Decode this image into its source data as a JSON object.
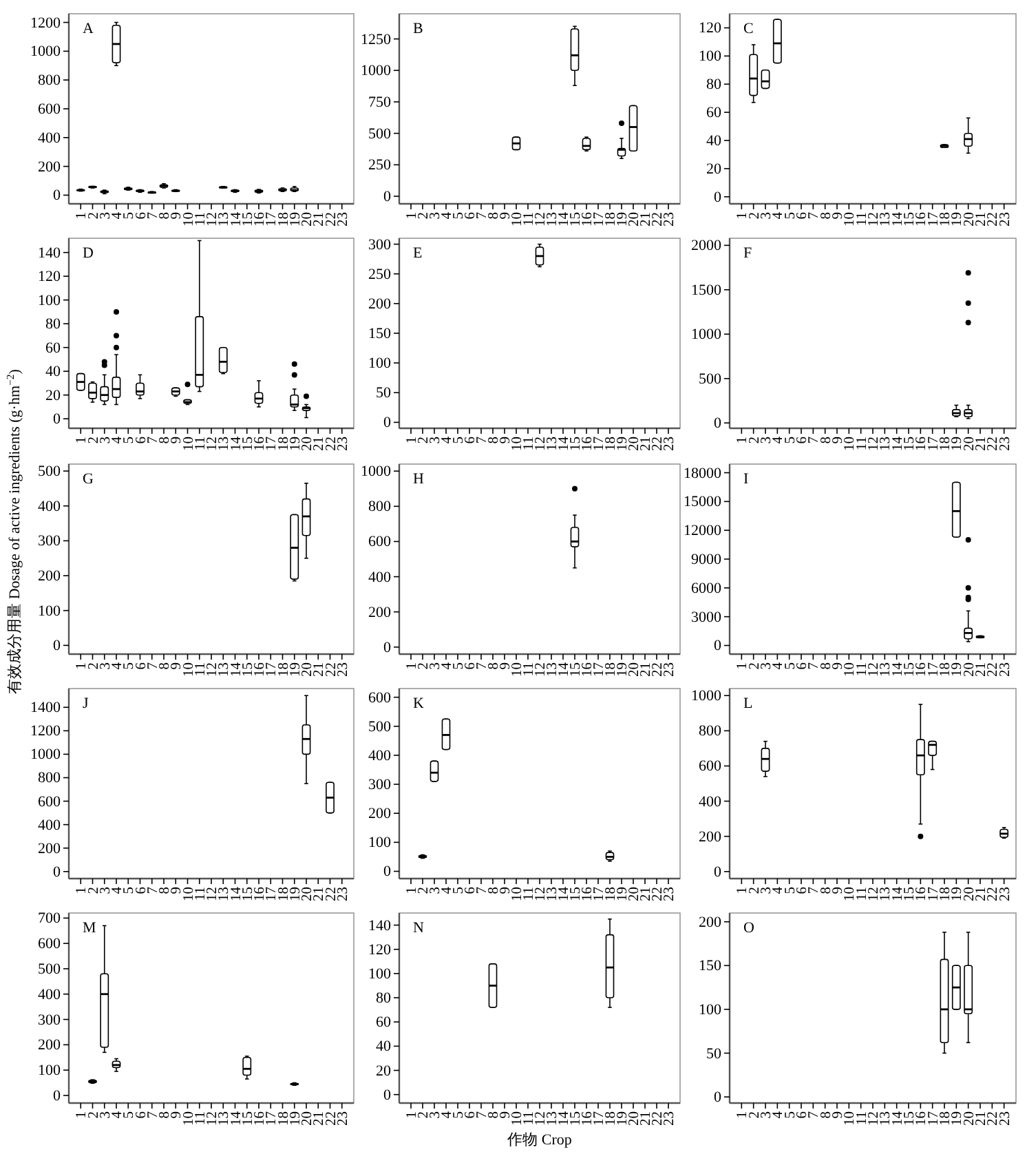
{
  "chart_data": [
    {
      "type": "box",
      "title": "A",
      "categories": [
        "1",
        "2",
        "3",
        "4",
        "5",
        "6",
        "7",
        "8",
        "9",
        "10",
        "11",
        "12",
        "13",
        "14",
        "15",
        "16",
        "17",
        "18",
        "19",
        "20",
        "21",
        "22",
        "23"
      ],
      "ylim": [
        -60,
        1260
      ],
      "yticks": [
        0,
        200,
        400,
        600,
        800,
        1000,
        1200
      ],
      "boxes": [
        {
          "low": 28,
          "q1": 32,
          "median": 35,
          "q3": 38,
          "high": 42
        },
        {
          "low": 50,
          "q1": 55,
          "median": 58,
          "q3": 60,
          "high": 62
        },
        {
          "low": 10,
          "q1": 18,
          "median": 25,
          "q3": 30,
          "high": 35
        },
        {
          "low": 900,
          "q1": 920,
          "median": 1050,
          "q3": 1180,
          "high": 1200
        },
        {
          "low": 35,
          "q1": 38,
          "median": 45,
          "q3": 50,
          "high": 55
        },
        {
          "low": 20,
          "q1": 25,
          "median": 30,
          "q3": 35,
          "high": 38
        },
        {
          "low": 15,
          "q1": 18,
          "median": 20,
          "q3": 22,
          "high": 25
        },
        {
          "low": 50,
          "q1": 55,
          "median": 65,
          "q3": 72,
          "high": 80
        },
        {
          "low": 25,
          "q1": 28,
          "median": 30,
          "q3": 35,
          "high": 38
        },
        null,
        null,
        null,
        {
          "low": 50,
          "q1": 53,
          "median": 55,
          "q3": 58,
          "high": 60
        },
        {
          "low": 20,
          "q1": 25,
          "median": 30,
          "q3": 35,
          "high": 38
        },
        null,
        {
          "low": 15,
          "q1": 20,
          "median": 28,
          "q3": 35,
          "high": 40
        },
        null,
        {
          "low": 25,
          "q1": 30,
          "median": 35,
          "q3": 45,
          "high": 50
        },
        {
          "low": 25,
          "q1": 30,
          "median": 35,
          "q3": 50,
          "high": 60
        },
        null,
        null,
        null,
        null
      ]
    },
    {
      "type": "box",
      "title": "B",
      "categories": [
        "1",
        "2",
        "3",
        "4",
        "5",
        "6",
        "7",
        "8",
        "9",
        "10",
        "11",
        "12",
        "13",
        "14",
        "15",
        "16",
        "17",
        "18",
        "19",
        "20",
        "21",
        "22",
        "23"
      ],
      "ylim": [
        -60,
        1450
      ],
      "yticks": [
        0,
        250,
        500,
        750,
        1000,
        1250
      ],
      "boxes": [
        null,
        null,
        null,
        null,
        null,
        null,
        null,
        null,
        null,
        {
          "low": 370,
          "q1": 370,
          "median": 420,
          "q3": 470,
          "high": 470
        },
        null,
        null,
        null,
        null,
        {
          "low": 880,
          "q1": 1000,
          "median": 1120,
          "q3": 1330,
          "high": 1350
        },
        {
          "low": 360,
          "q1": 370,
          "median": 400,
          "q3": 460,
          "high": 470
        },
        null,
        null,
        {
          "low": 300,
          "q1": 320,
          "median": 370,
          "q3": 380,
          "high": 460,
          "outliers": [
            580
          ]
        },
        {
          "low": 360,
          "q1": 360,
          "median": 550,
          "q3": 720,
          "high": 720
        },
        null,
        null,
        null
      ]
    },
    {
      "type": "box",
      "title": "C",
      "categories": [
        "1",
        "2",
        "3",
        "4",
        "5",
        "6",
        "7",
        "8",
        "9",
        "10",
        "11",
        "12",
        "13",
        "14",
        "15",
        "16",
        "17",
        "18",
        "19",
        "20",
        "21",
        "22",
        "23"
      ],
      "ylim": [
        -5,
        130
      ],
      "yticks": [
        0,
        20,
        40,
        60,
        80,
        100,
        120
      ],
      "boxes": [
        null,
        {
          "low": 67,
          "q1": 72,
          "median": 84,
          "q3": 101,
          "high": 108
        },
        {
          "low": 77,
          "q1": 77,
          "median": 82,
          "q3": 90,
          "high": 90
        },
        {
          "low": 95,
          "q1": 95,
          "median": 109,
          "q3": 126,
          "high": 126
        },
        null,
        null,
        null,
        null,
        null,
        null,
        null,
        null,
        null,
        null,
        null,
        null,
        null,
        {
          "low": 35,
          "q1": 35,
          "median": 36,
          "q3": 37,
          "high": 37
        },
        null,
        {
          "low": 31,
          "q1": 36,
          "median": 41,
          "q3": 45,
          "high": 56
        },
        null,
        null,
        null
      ]
    },
    {
      "type": "box",
      "title": "D",
      "categories": [
        "1",
        "2",
        "3",
        "4",
        "5",
        "6",
        "7",
        "8",
        "9",
        "10",
        "11",
        "12",
        "13",
        "14",
        "15",
        "16",
        "17",
        "18",
        "19",
        "20",
        "21",
        "22",
        "23"
      ],
      "ylim": [
        -8,
        152
      ],
      "yticks": [
        0,
        20,
        40,
        60,
        80,
        100,
        120,
        140
      ],
      "boxes": [
        {
          "low": 24,
          "q1": 24,
          "median": 31,
          "q3": 38,
          "high": 38
        },
        {
          "low": 14,
          "q1": 17,
          "median": 22,
          "q3": 30,
          "high": 31
        },
        {
          "low": 12,
          "q1": 15,
          "median": 20,
          "q3": 27,
          "high": 37,
          "outliers": [
            45,
            48
          ]
        },
        {
          "low": 12,
          "q1": 18,
          "median": 25,
          "q3": 35,
          "high": 54,
          "outliers": [
            60,
            70,
            90
          ]
        },
        null,
        {
          "low": 17,
          "q1": 20,
          "median": 23,
          "q3": 30,
          "high": 37
        },
        null,
        null,
        {
          "low": 19,
          "q1": 20,
          "median": 23,
          "q3": 26,
          "high": 26
        },
        {
          "low": 12,
          "q1": 13,
          "median": 14,
          "q3": 16,
          "high": 16,
          "outliers": [
            29
          ]
        },
        {
          "low": 23,
          "q1": 27,
          "median": 37,
          "q3": 86,
          "high": 150
        },
        null,
        {
          "low": 38,
          "q1": 39,
          "median": 48,
          "q3": 60,
          "high": 60
        },
        null,
        null,
        {
          "low": 10,
          "q1": 13,
          "median": 17,
          "q3": 22,
          "high": 32
        },
        null,
        null,
        {
          "low": 7,
          "q1": 10,
          "median": 12,
          "q3": 20,
          "high": 25,
          "outliers": [
            37,
            46
          ]
        },
        {
          "low": 1,
          "q1": 7,
          "median": 9,
          "q3": 10,
          "high": 12,
          "outliers": [
            19
          ]
        },
        null,
        null,
        null
      ]
    },
    {
      "type": "box",
      "title": "E",
      "categories": [
        "1",
        "2",
        "3",
        "4",
        "5",
        "6",
        "7",
        "8",
        "9",
        "10",
        "11",
        "12",
        "13",
        "14",
        "15",
        "16",
        "17",
        "18",
        "19",
        "20",
        "21",
        "22",
        "23"
      ],
      "ylim": [
        -10,
        310
      ],
      "yticks": [
        0,
        50,
        100,
        150,
        200,
        250,
        300
      ],
      "boxes": [
        null,
        null,
        null,
        null,
        null,
        null,
        null,
        null,
        null,
        null,
        null,
        {
          "low": 262,
          "q1": 265,
          "median": 280,
          "q3": 295,
          "high": 300
        },
        null,
        null,
        null,
        null,
        null,
        null,
        null,
        null,
        null,
        null,
        null
      ]
    },
    {
      "type": "box",
      "title": "F",
      "categories": [
        "1",
        "2",
        "3",
        "4",
        "5",
        "6",
        "7",
        "8",
        "9",
        "10",
        "11",
        "12",
        "13",
        "14",
        "15",
        "16",
        "17",
        "18",
        "19",
        "20",
        "21",
        "22",
        "23"
      ],
      "ylim": [
        -60,
        2080
      ],
      "yticks": [
        0,
        500,
        1000,
        1500,
        2000
      ],
      "boxes": [
        null,
        null,
        null,
        null,
        null,
        null,
        null,
        null,
        null,
        null,
        null,
        null,
        null,
        null,
        null,
        null,
        null,
        null,
        {
          "low": 70,
          "q1": 80,
          "median": 110,
          "q3": 150,
          "high": 200
        },
        {
          "low": 50,
          "q1": 70,
          "median": 110,
          "q3": 150,
          "high": 200,
          "outliers": [
            1130,
            1350,
            1690
          ]
        },
        null,
        null,
        null
      ]
    },
    {
      "type": "box",
      "title": "G",
      "categories": [
        "1",
        "2",
        "3",
        "4",
        "5",
        "6",
        "7",
        "8",
        "9",
        "10",
        "11",
        "12",
        "13",
        "14",
        "15",
        "16",
        "17",
        "18",
        "19",
        "20",
        "21",
        "22",
        "23"
      ],
      "ylim": [
        -25,
        520
      ],
      "yticks": [
        0,
        100,
        200,
        300,
        400,
        500
      ],
      "ylabel": "有效成分用量 Dosage of active ingredients (g·hm$^{−2}$)",
      "boxes": [
        null,
        null,
        null,
        null,
        null,
        null,
        null,
        null,
        null,
        null,
        null,
        null,
        null,
        null,
        null,
        null,
        null,
        null,
        {
          "low": 185,
          "q1": 190,
          "median": 280,
          "q3": 375,
          "high": 375
        },
        {
          "low": 250,
          "q1": 315,
          "median": 370,
          "q3": 420,
          "high": 465
        },
        null,
        null,
        null
      ]
    },
    {
      "type": "box",
      "title": "H",
      "categories": [
        "1",
        "2",
        "3",
        "4",
        "5",
        "6",
        "7",
        "8",
        "9",
        "10",
        "11",
        "12",
        "13",
        "14",
        "15",
        "16",
        "17",
        "18",
        "19",
        "20",
        "21",
        "22",
        "23"
      ],
      "ylim": [
        -40,
        1040
      ],
      "yticks": [
        0,
        200,
        400,
        600,
        800,
        1000
      ],
      "boxes": [
        null,
        null,
        null,
        null,
        null,
        null,
        null,
        null,
        null,
        null,
        null,
        null,
        null,
        null,
        {
          "low": 450,
          "q1": 570,
          "median": 600,
          "q3": 680,
          "high": 750,
          "outliers": [
            900
          ]
        },
        null,
        null,
        null,
        null,
        null,
        null,
        null,
        null
      ]
    },
    {
      "type": "box",
      "title": "I",
      "categories": [
        "1",
        "2",
        "3",
        "4",
        "5",
        "6",
        "7",
        "8",
        "9",
        "10",
        "11",
        "12",
        "13",
        "14",
        "15",
        "16",
        "17",
        "18",
        "19",
        "20",
        "21",
        "22",
        "23"
      ],
      "ylim": [
        -900,
        18900
      ],
      "yticks": [
        0,
        3000,
        6000,
        9000,
        12000,
        15000,
        18000
      ],
      "boxes": [
        null,
        null,
        null,
        null,
        null,
        null,
        null,
        null,
        null,
        null,
        null,
        null,
        null,
        null,
        null,
        null,
        null,
        null,
        {
          "low": 11300,
          "q1": 11300,
          "median": 14000,
          "q3": 17000,
          "high": 17000
        },
        {
          "low": 400,
          "q1": 700,
          "median": 1300,
          "q3": 1800,
          "high": 3600,
          "outliers": [
            4800,
            5000,
            6000,
            11000
          ]
        },
        {
          "low": 800,
          "q1": 800,
          "median": 900,
          "q3": 1000,
          "high": 1000
        },
        null,
        null
      ]
    },
    {
      "type": "box",
      "title": "J",
      "categories": [
        "1",
        "2",
        "3",
        "4",
        "5",
        "6",
        "7",
        "8",
        "9",
        "10",
        "11",
        "12",
        "13",
        "14",
        "15",
        "16",
        "17",
        "18",
        "19",
        "20",
        "21",
        "22",
        "23"
      ],
      "ylim": [
        -60,
        1560
      ],
      "yticks": [
        0,
        200,
        400,
        600,
        800,
        1000,
        1200,
        1400
      ],
      "boxes": [
        null,
        null,
        null,
        null,
        null,
        null,
        null,
        null,
        null,
        null,
        null,
        null,
        null,
        null,
        null,
        null,
        null,
        null,
        null,
        {
          "low": 750,
          "q1": 1000,
          "median": 1130,
          "q3": 1250,
          "high": 1500
        },
        null,
        {
          "low": 500,
          "q1": 500,
          "median": 630,
          "q3": 760,
          "high": 760
        },
        null
      ]
    },
    {
      "type": "box",
      "title": "K",
      "categories": [
        "1",
        "2",
        "3",
        "4",
        "5",
        "6",
        "7",
        "8",
        "9",
        "10",
        "11",
        "12",
        "13",
        "14",
        "15",
        "16",
        "17",
        "18",
        "19",
        "20",
        "21",
        "22",
        "23"
      ],
      "ylim": [
        -25,
        630
      ],
      "yticks": [
        0,
        100,
        200,
        300,
        400,
        500,
        600
      ],
      "boxes": [
        null,
        {
          "low": 45,
          "q1": 47,
          "median": 50,
          "q3": 55,
          "high": 57
        },
        {
          "low": 310,
          "q1": 310,
          "median": 340,
          "q3": 380,
          "high": 380
        },
        {
          "low": 420,
          "q1": 420,
          "median": 470,
          "q3": 525,
          "high": 525
        },
        null,
        null,
        null,
        null,
        null,
        null,
        null,
        null,
        null,
        null,
        null,
        null,
        null,
        {
          "low": 35,
          "q1": 40,
          "median": 50,
          "q3": 65,
          "high": 70
        },
        null,
        null,
        null,
        null,
        null
      ]
    },
    {
      "type": "box",
      "title": "L",
      "categories": [
        "1",
        "2",
        "3",
        "4",
        "5",
        "6",
        "7",
        "8",
        "9",
        "10",
        "11",
        "12",
        "13",
        "14",
        "15",
        "16",
        "17",
        "18",
        "19",
        "20",
        "21",
        "22",
        "23"
      ],
      "ylim": [
        -40,
        1040
      ],
      "yticks": [
        0,
        200,
        400,
        600,
        800,
        1000
      ],
      "boxes": [
        null,
        null,
        {
          "low": 540,
          "q1": 570,
          "median": 640,
          "q3": 700,
          "high": 740
        },
        null,
        null,
        null,
        null,
        null,
        null,
        null,
        null,
        null,
        null,
        null,
        null,
        {
          "low": 270,
          "q1": 550,
          "median": 660,
          "q3": 750,
          "high": 950,
          "outliers": [
            200
          ]
        },
        {
          "low": 580,
          "q1": 660,
          "median": 720,
          "q3": 740,
          "high": 740
        },
        null,
        null,
        null,
        null,
        null,
        {
          "low": 190,
          "q1": 195,
          "median": 215,
          "q3": 240,
          "high": 250
        }
      ]
    },
    {
      "type": "box",
      "title": "M",
      "categories": [
        "1",
        "2",
        "3",
        "4",
        "5",
        "6",
        "7",
        "8",
        "9",
        "10",
        "11",
        "12",
        "13",
        "14",
        "15",
        "16",
        "17",
        "18",
        "19",
        "20",
        "21",
        "22",
        "23"
      ],
      "ylim": [
        -30,
        720
      ],
      "yticks": [
        0,
        100,
        200,
        300,
        400,
        500,
        600,
        700
      ],
      "boxes": [
        null,
        {
          "low": 48,
          "q1": 50,
          "median": 55,
          "q3": 60,
          "high": 62
        },
        {
          "low": 170,
          "q1": 190,
          "median": 400,
          "q3": 480,
          "high": 670
        },
        {
          "low": 95,
          "q1": 110,
          "median": 120,
          "q3": 135,
          "high": 145
        },
        null,
        null,
        null,
        null,
        null,
        null,
        null,
        null,
        null,
        null,
        {
          "low": 65,
          "q1": 80,
          "median": 105,
          "q3": 150,
          "high": 155
        },
        null,
        null,
        null,
        {
          "low": 40,
          "q1": 42,
          "median": 45,
          "q3": 48,
          "high": 50
        },
        null,
        null,
        null,
        null
      ]
    },
    {
      "type": "box",
      "title": "N",
      "categories": [
        "1",
        "2",
        "3",
        "4",
        "5",
        "6",
        "7",
        "8",
        "9",
        "10",
        "11",
        "12",
        "13",
        "14",
        "15",
        "16",
        "17",
        "18",
        "19",
        "20",
        "21",
        "22",
        "23"
      ],
      "ylim": [
        -7,
        150
      ],
      "yticks": [
        0,
        20,
        40,
        60,
        80,
        100,
        120,
        140
      ],
      "xlabel": "作物 Crop",
      "boxes": [
        null,
        null,
        null,
        null,
        null,
        null,
        null,
        {
          "low": 72,
          "q1": 72,
          "median": 90,
          "q3": 108,
          "high": 108
        },
        null,
        null,
        null,
        null,
        null,
        null,
        null,
        null,
        null,
        {
          "low": 72,
          "q1": 80,
          "median": 105,
          "q3": 132,
          "high": 145
        },
        null,
        null,
        null,
        null,
        null
      ]
    },
    {
      "type": "box",
      "title": "O",
      "categories": [
        "1",
        "2",
        "3",
        "4",
        "5",
        "6",
        "7",
        "8",
        "9",
        "10",
        "11",
        "12",
        "13",
        "14",
        "15",
        "16",
        "17",
        "18",
        "19",
        "20",
        "21",
        "22",
        "23"
      ],
      "ylim": [
        -7,
        210
      ],
      "yticks": [
        0,
        50,
        100,
        150,
        200
      ],
      "boxes": [
        null,
        null,
        null,
        null,
        null,
        null,
        null,
        null,
        null,
        null,
        null,
        null,
        null,
        null,
        null,
        null,
        null,
        {
          "low": 50,
          "q1": 62,
          "median": 100,
          "q3": 157,
          "high": 188
        },
        {
          "low": 100,
          "q1": 100,
          "median": 125,
          "q3": 150,
          "high": 150
        },
        {
          "low": 62,
          "q1": 95,
          "median": 100,
          "q3": 150,
          "high": 188
        },
        null,
        null,
        null
      ]
    }
  ]
}
